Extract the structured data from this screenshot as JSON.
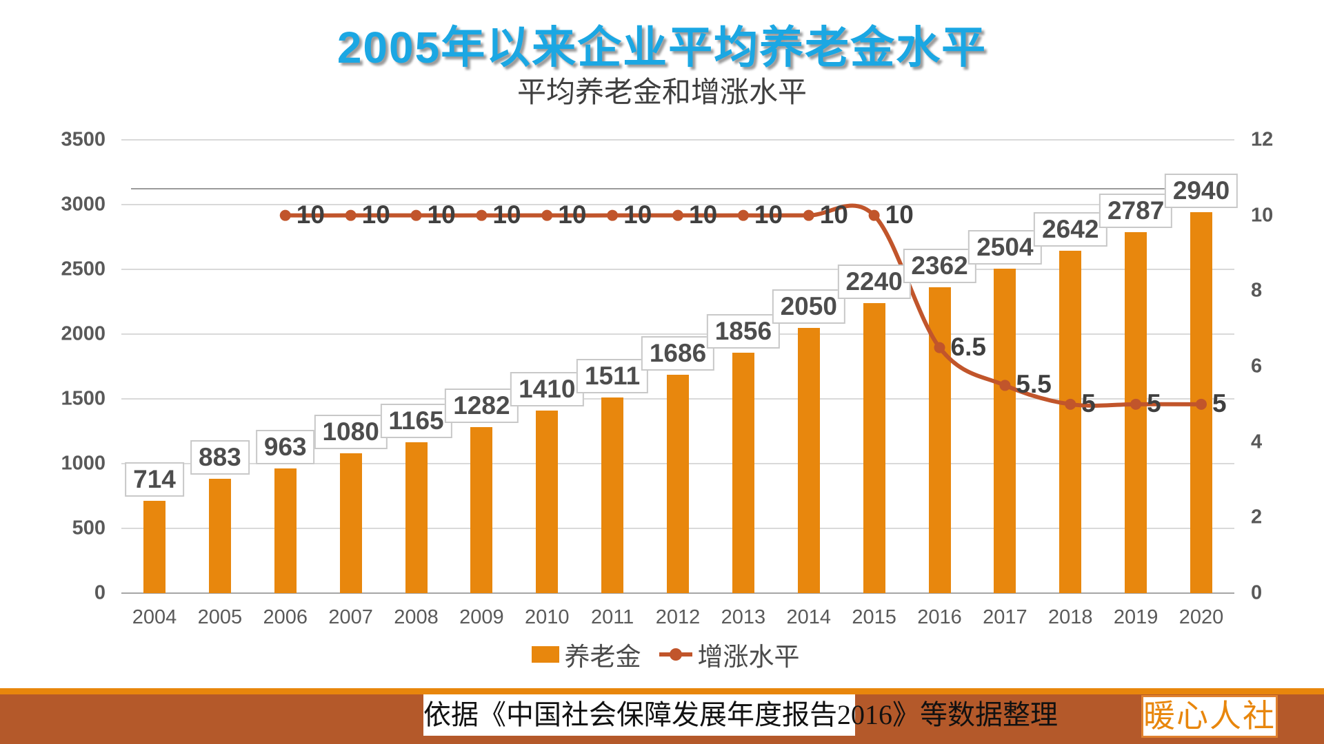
{
  "title": "2005年以来企业平均养老金水平",
  "subtitle": "平均养老金和增涨水平",
  "chart_data": {
    "type": "combo",
    "categories": [
      "2004",
      "2005",
      "2006",
      "2007",
      "2008",
      "2009",
      "2010",
      "2011",
      "2012",
      "2013",
      "2014",
      "2015",
      "2016",
      "2017",
      "2018",
      "2019",
      "2020"
    ],
    "series": [
      {
        "name": "养老金",
        "type": "bar",
        "values": [
          714,
          883,
          963,
          1080,
          1165,
          1282,
          1410,
          1511,
          1686,
          1856,
          2050,
          2240,
          2362,
          2504,
          2642,
          2787,
          2940
        ],
        "axis": "left"
      },
      {
        "name": "增涨水平",
        "type": "line",
        "smooth": true,
        "values": [
          null,
          null,
          10,
          10,
          10,
          10,
          10,
          10,
          10,
          10,
          10,
          10,
          6.5,
          5.5,
          5,
          5,
          5
        ],
        "axis": "right"
      }
    ],
    "left_axis": {
      "min": 0,
      "max": 3500,
      "ticks": [
        3500,
        3000,
        2500,
        2000,
        1500,
        1000,
        500,
        0
      ]
    },
    "right_axis": {
      "min": 0,
      "max": 12,
      "ticks": [
        12,
        10,
        8,
        6,
        4,
        2,
        0
      ]
    },
    "grid": true,
    "legend_position": "bottom",
    "data_labels": true
  },
  "legend": {
    "bar_label": "养老金",
    "line_label": "增涨水平"
  },
  "footer": {
    "source_text": "依据《中国社会保障发展年度报告2016》等数据整理",
    "brand_text": "暖心人社"
  },
  "colors": {
    "title_blue": "#1ba7e3",
    "subtitle_gray": "#3f3f3f",
    "bar_orange": "#e8870d",
    "line_rust": "#c1552b",
    "banner_strip_orange": "#e8860c",
    "banner_band_rust": "#b4592a",
    "brand_text_orange": "#e8860c",
    "axis_text_gray": "#595959"
  }
}
